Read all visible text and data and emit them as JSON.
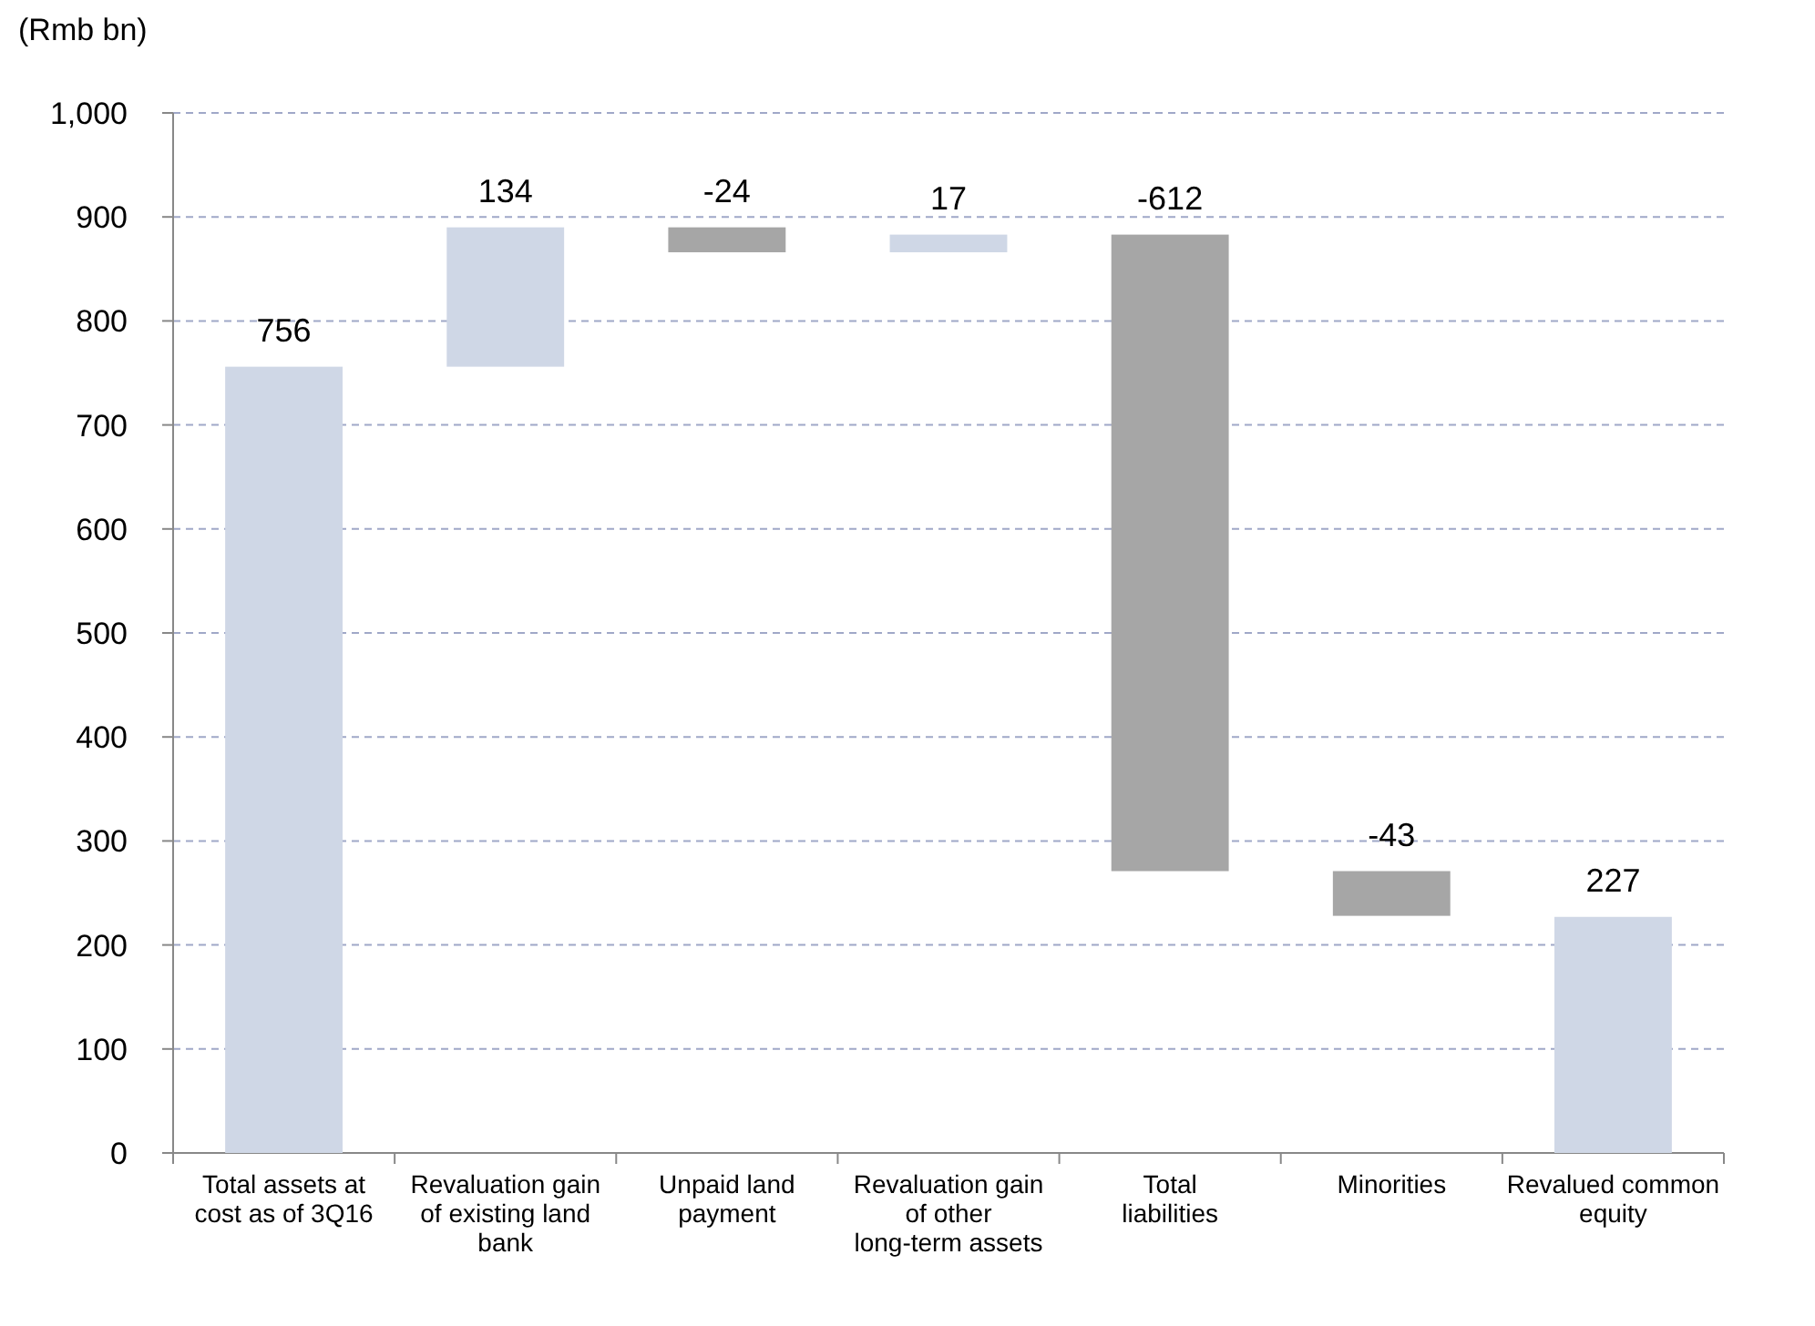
{
  "chart_data": {
    "type": "bar",
    "ylabel": "(Rmb bn)",
    "categories": [
      "Total assets at cost as of 3Q16",
      "Revaluation gain of existing land bank",
      "Unpaid land payment",
      "Revaluation gain of other long-term assets",
      "Total liabilities",
      "Minorities",
      "Revalued common equity"
    ],
    "values": [
      756,
      134,
      -24,
      17,
      -612,
      -43,
      227
    ],
    "base": [
      0,
      756,
      890,
      866,
      883,
      271,
      0
    ],
    "colors": [
      "#cfd7e6",
      "#cfd7e6",
      "#a6a6a6",
      "#cfd7e6",
      "#a6a6a6",
      "#a6a6a6",
      "#cfd7e6"
    ],
    "ylim": [
      0,
      1000
    ],
    "yticks": [
      0,
      100,
      200,
      300,
      400,
      500,
      600,
      700,
      800,
      900,
      {
        "value": 1000,
        "label": "1,000"
      }
    ],
    "grid": "y",
    "data_labels": true
  }
}
